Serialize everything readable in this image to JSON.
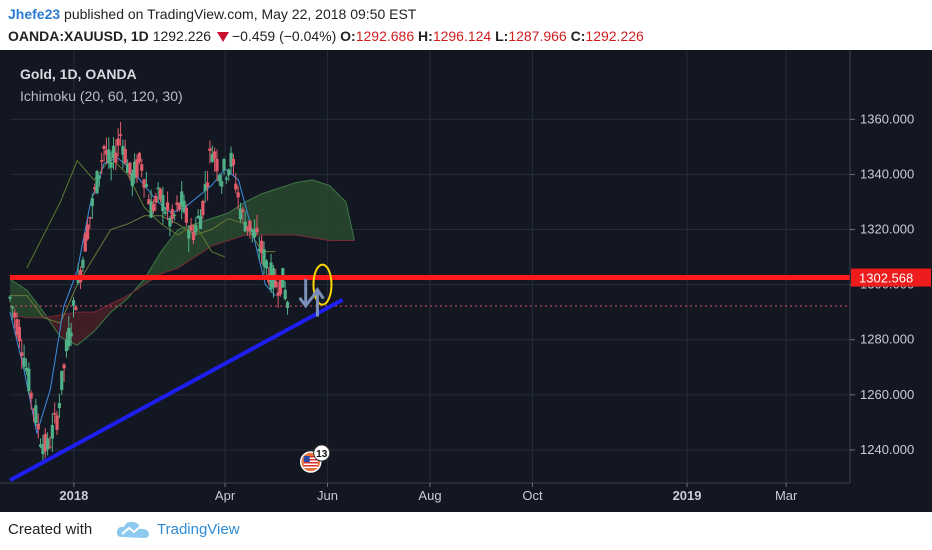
{
  "header": {
    "author": "Jhefe23",
    "published": "published on TradingView.com, May 22, 2018 09:50 EST",
    "symbol": "OANDA:XAUUSD, 1D",
    "last": "1292.226",
    "change": "−0.459 (−0.04%)",
    "o_label": "O:",
    "o_value": "1292.686",
    "h_label": "H:",
    "h_value": "1296.124",
    "l_label": "L:",
    "l_value": "1287.966",
    "c_label": "C:",
    "c_value": "1292.226"
  },
  "legend": {
    "title": "Gold, 1D, OANDA",
    "indicator": "Ichimoku (20, 60, 120, 30)"
  },
  "colors": {
    "background": "#131722",
    "up_candle": "#4fb087",
    "down_candle": "#e05c6a",
    "resistance": "#ff1a1a",
    "trendline": "#1e1ef0",
    "cloud_green": "#2a4a2e",
    "cloud_red": "#4a1e26",
    "price_label_bg": "#ee1c1c"
  },
  "chart_data": {
    "type": "candlestick",
    "y_axis": {
      "ticks": [
        "1360.000",
        "1340.000",
        "1320.000",
        "1300.000",
        "1280.000",
        "1260.000",
        "1240.000"
      ],
      "tick_values": [
        1360,
        1340,
        1320,
        1300,
        1280,
        1260,
        1240
      ],
      "range": [
        1228,
        1375
      ]
    },
    "x_axis": {
      "ticks": [
        "2018",
        "Apr",
        "Jun",
        "Aug",
        "Oct",
        "2019",
        "Mar"
      ],
      "tick_dates": [
        "2018-01-01",
        "2018-04-01",
        "2018-06-01",
        "2018-08-01",
        "2018-10-01",
        "2019-01-01",
        "2019-03-01"
      ],
      "bold_ticks": [
        "2018",
        "2019"
      ],
      "range": [
        "2017-11-24",
        "2019-04-08"
      ]
    },
    "horizontal_level": {
      "value": 1302.568,
      "label": "1302.568"
    },
    "last_price_line": 1292.226,
    "trendline": {
      "start": {
        "date": "2017-11-24",
        "value": 1229
      },
      "end": {
        "date": "2018-06-10",
        "value": 1294.5
      }
    },
    "ichimoku_tenkan": [
      [
        0,
        1290
      ],
      [
        8,
        1270
      ],
      [
        16,
        1246
      ],
      [
        24,
        1262
      ],
      [
        32,
        1292
      ],
      [
        40,
        1305
      ],
      [
        48,
        1330
      ],
      [
        56,
        1344
      ],
      [
        64,
        1346
      ],
      [
        72,
        1342
      ],
      [
        80,
        1336
      ],
      [
        88,
        1330
      ],
      [
        96,
        1326
      ],
      [
        104,
        1328
      ],
      [
        112,
        1332
      ],
      [
        120,
        1336
      ],
      [
        128,
        1342
      ],
      [
        136,
        1338
      ],
      [
        144,
        1320
      ],
      [
        152,
        1300
      ],
      [
        158,
        1296
      ]
    ],
    "ichimoku_kijun": [
      [
        0,
        1296
      ],
      [
        10,
        1296
      ],
      [
        20,
        1288
      ],
      [
        30,
        1286
      ],
      [
        40,
        1300
      ],
      [
        50,
        1310
      ],
      [
        60,
        1320
      ],
      [
        70,
        1322
      ],
      [
        80,
        1325
      ],
      [
        90,
        1325
      ],
      [
        100,
        1322
      ],
      [
        110,
        1318
      ],
      [
        120,
        1320
      ],
      [
        130,
        1324
      ],
      [
        140,
        1322
      ],
      [
        150,
        1312
      ],
      [
        158,
        1312
      ]
    ],
    "ichimoku_chikou": [
      [
        10,
        1306
      ],
      [
        20,
        1318
      ],
      [
        30,
        1330
      ],
      [
        40,
        1345
      ],
      [
        50,
        1338
      ],
      [
        60,
        1346
      ],
      [
        70,
        1340
      ],
      [
        80,
        1328
      ],
      [
        90,
        1322
      ],
      [
        100,
        1318
      ],
      [
        110,
        1322
      ],
      [
        120,
        1312
      ],
      [
        128,
        1310
      ]
    ],
    "cloud_span_a": [
      [
        0,
        1302
      ],
      [
        10,
        1298
      ],
      [
        20,
        1290
      ],
      [
        30,
        1281
      ],
      [
        40,
        1278
      ],
      [
        50,
        1283
      ],
      [
        60,
        1290
      ],
      [
        70,
        1295
      ],
      [
        80,
        1302
      ],
      [
        90,
        1312
      ],
      [
        100,
        1320
      ],
      [
        110,
        1322
      ],
      [
        120,
        1324
      ],
      [
        130,
        1326
      ],
      [
        140,
        1330
      ],
      [
        150,
        1333
      ],
      [
        160,
        1335
      ],
      [
        170,
        1337
      ],
      [
        180,
        1338
      ],
      [
        190,
        1336
      ],
      [
        200,
        1330
      ],
      [
        205,
        1316
      ]
    ],
    "cloud_span_b": [
      [
        0,
        1289
      ],
      [
        10,
        1288
      ],
      [
        20,
        1288
      ],
      [
        30,
        1289
      ],
      [
        40,
        1290
      ],
      [
        50,
        1290
      ],
      [
        60,
        1293
      ],
      [
        70,
        1296
      ],
      [
        80,
        1300
      ],
      [
        90,
        1304
      ],
      [
        100,
        1306
      ],
      [
        110,
        1310
      ],
      [
        120,
        1314
      ],
      [
        130,
        1316
      ],
      [
        140,
        1318
      ],
      [
        150,
        1318
      ],
      [
        160,
        1318
      ],
      [
        170,
        1318
      ],
      [
        180,
        1317
      ],
      [
        190,
        1316
      ],
      [
        200,
        1316
      ],
      [
        205,
        1316
      ]
    ],
    "annotations": [
      {
        "type": "ellipse",
        "date": "2018-05-29",
        "value": 1300,
        "color": "#ffd700"
      },
      {
        "type": "arrow-down",
        "date": "2018-05-19",
        "value": 1297,
        "color": "#7a90b8"
      },
      {
        "type": "arrow-up",
        "date": "2018-05-26",
        "value": 1292,
        "color": "#7a90b8"
      }
    ],
    "event_badge": {
      "date": "2018-05-22",
      "count": "13"
    }
  },
  "footer": {
    "created": "Created with",
    "brand": "TradingView"
  }
}
